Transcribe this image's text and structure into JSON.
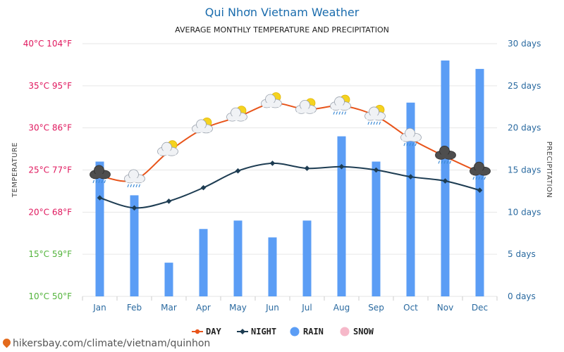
{
  "title": "Qui Nhơn Vietnam Weather",
  "subtitle": "AVERAGE MONTHLY TEMPERATURE AND PRECIPITATION",
  "watermark": "hikersbay.com/climate/vietnam/quinhon",
  "colors": {
    "day": "#e8541a",
    "night": "#1d3c52",
    "rain": "#5b9df5",
    "snow": "#f6b8c9",
    "right_axis": "#2a6aa0",
    "grid": "#e6e6e6"
  },
  "chart_data": {
    "type": "line",
    "categories": [
      "Jan",
      "Feb",
      "Mar",
      "Apr",
      "May",
      "Jun",
      "Jul",
      "Aug",
      "Sep",
      "Oct",
      "Nov",
      "Dec"
    ],
    "series": [
      {
        "name": "DAY",
        "axis": "left",
        "values": [
          24.3,
          23.8,
          27.2,
          29.9,
          31.3,
          32.9,
          32.2,
          32.6,
          31.4,
          28.7,
          26.6,
          24.7
        ]
      },
      {
        "name": "NIGHT",
        "axis": "left",
        "values": [
          21.7,
          20.5,
          21.3,
          22.9,
          24.9,
          25.8,
          25.2,
          25.4,
          25.0,
          24.2,
          23.7,
          22.6
        ]
      },
      {
        "name": "RAIN",
        "axis": "right",
        "type": "bar",
        "values": [
          16,
          12,
          4,
          8,
          9,
          7,
          9,
          19,
          16,
          23,
          28,
          27
        ]
      },
      {
        "name": "SNOW",
        "axis": "right",
        "type": "bar",
        "values": [
          0,
          0,
          0,
          0,
          0,
          0,
          0,
          0,
          0,
          0,
          0,
          0
        ]
      }
    ],
    "weather_icons": [
      "storm",
      "rain-cloud",
      "partly-sunny",
      "partly-sunny",
      "partly-sunny",
      "partly-sunny",
      "partly-sunny",
      "sun-rain",
      "sun-rain",
      "rain-cloud",
      "storm",
      "storm"
    ],
    "ylabel": "TEMPERATURE",
    "y2label": "PRECIPITATION",
    "ylim": [
      10,
      40
    ],
    "y2lim": [
      0,
      30
    ],
    "yticks": [
      {
        "value": 40,
        "label": "40°C 104°F",
        "color": "#e0185e"
      },
      {
        "value": 35,
        "label": "35°C 95°F",
        "color": "#e0185e"
      },
      {
        "value": 30,
        "label": "30°C 86°F",
        "color": "#e0185e"
      },
      {
        "value": 25,
        "label": "25°C 77°F",
        "color": "#e0185e"
      },
      {
        "value": 20,
        "label": "20°C 68°F",
        "color": "#e0185e"
      },
      {
        "value": 15,
        "label": "15°C 59°F",
        "color": "#53b43c"
      },
      {
        "value": 10,
        "label": "10°C 50°F",
        "color": "#53b43c"
      }
    ],
    "y2ticks": [
      {
        "value": 30,
        "label": "30 days"
      },
      {
        "value": 25,
        "label": "25 days"
      },
      {
        "value": 20,
        "label": "20 days"
      },
      {
        "value": 15,
        "label": "15 days"
      },
      {
        "value": 10,
        "label": "10 days"
      },
      {
        "value": 5,
        "label": "5 days"
      },
      {
        "value": 0,
        "label": "0 days"
      }
    ],
    "grid": true,
    "legend": {
      "placement": "bottom-center",
      "items": [
        "DAY",
        "NIGHT",
        "RAIN",
        "SNOW"
      ]
    }
  }
}
